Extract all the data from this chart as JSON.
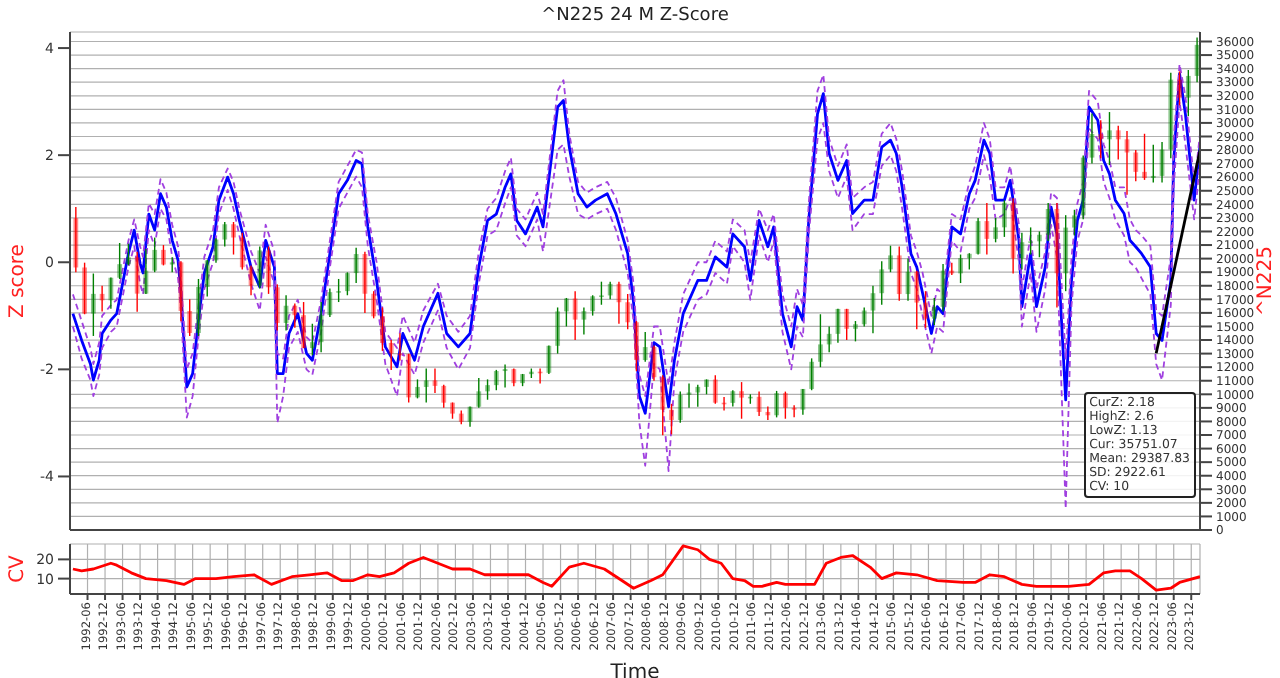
{
  "chart_data": [
    {
      "type": "line",
      "title": "^N225 24 M Z-Score",
      "ylabel": "Z score",
      "y2label": "^N225",
      "grid": true,
      "tick_labels": "y",
      "xlim": [
        "1991-12",
        "2024-03"
      ],
      "xticks": [
        "1992-06",
        "1992-12",
        "1993-06",
        "1993-12",
        "1994-06",
        "1994-12",
        "1995-06",
        "1995-12",
        "1996-06",
        "1996-12",
        "1997-06",
        "1997-12",
        "1998-06",
        "1998-12",
        "1999-06",
        "1999-12",
        "2000-06",
        "2000-12",
        "2001-06",
        "2001-12",
        "2002-06",
        "2002-12",
        "2003-06",
        "2003-12",
        "2004-06",
        "2004-12",
        "2005-06",
        "2005-12",
        "2006-06",
        "2006-12",
        "2007-06",
        "2007-12",
        "2008-06",
        "2008-12",
        "2009-06",
        "2009-12",
        "2010-06",
        "2010-12",
        "2011-06",
        "2011-12",
        "2012-06",
        "2012-12",
        "2013-06",
        "2013-12",
        "2014-06",
        "2014-12",
        "2015-06",
        "2015-12",
        "2016-06",
        "2016-12",
        "2017-06",
        "2017-12",
        "2018-06",
        "2018-12",
        "2019-06",
        "2019-12",
        "2020-06",
        "2020-12",
        "2021-06",
        "2021-12",
        "2022-06",
        "2022-12",
        "2023-06",
        "2023-12"
      ],
      "ylim": [
        -5,
        4.3
      ],
      "yticks": [
        -4,
        -2,
        0,
        2,
        4
      ],
      "y2lim": [
        0,
        36700
      ],
      "y2ticks": [
        0,
        1000,
        2000,
        3000,
        4000,
        5000,
        6000,
        7000,
        8000,
        9000,
        10000,
        11000,
        12000,
        13000,
        14000,
        15000,
        16000,
        17000,
        18000,
        19000,
        20000,
        21000,
        22000,
        23000,
        24000,
        25000,
        26000,
        27000,
        28000,
        29000,
        30000,
        31000,
        32000,
        33000,
        34000,
        35000,
        36000
      ],
      "annotations": [
        "CurZ: 2.18",
        "HighZ: 2.6",
        "LowZ: 1.13",
        "Cur: 35751.07",
        "Mean: 29387.83",
        "SD: 2922.61",
        "CV: 10"
      ],
      "x": [
        "1992-01",
        "1992-04",
        "1992-07",
        "1992-08",
        "1992-10",
        "1992-11",
        "1993-02",
        "1993-04",
        "1993-08",
        "1993-10",
        "1993-12",
        "1994-01",
        "1994-03",
        "1994-05",
        "1994-07",
        "1994-09",
        "1994-11",
        "1995-01",
        "1995-02",
        "1995-04",
        "1995-06",
        "1995-08",
        "1995-10",
        "1996-01",
        "1996-03",
        "1996-06",
        "1996-08",
        "1996-10",
        "1997-02",
        "1997-05",
        "1997-07",
        "1997-10",
        "1997-11",
        "1998-01",
        "1998-03",
        "1998-06",
        "1998-09",
        "1998-11",
        "1999-02",
        "1999-05",
        "1999-08",
        "1999-11",
        "2000-02",
        "2000-04",
        "2000-06",
        "2000-09",
        "2000-12",
        "2001-04",
        "2001-06",
        "2001-10",
        "2002-01",
        "2002-06",
        "2002-09",
        "2003-01",
        "2003-05",
        "2003-08",
        "2003-11",
        "2004-02",
        "2004-05",
        "2004-07",
        "2004-09",
        "2004-12",
        "2005-04",
        "2005-06",
        "2005-11",
        "2006-01",
        "2006-03",
        "2006-06",
        "2006-09",
        "2006-12",
        "2007-04",
        "2007-07",
        "2007-11",
        "2008-01",
        "2008-03",
        "2008-05",
        "2008-08",
        "2008-10",
        "2009-01",
        "2009-03",
        "2009-06",
        "2009-11",
        "2010-02",
        "2010-05",
        "2010-09",
        "2010-11",
        "2011-03",
        "2011-05",
        "2011-08",
        "2011-11",
        "2012-01",
        "2012-04",
        "2012-07",
        "2012-09",
        "2012-11",
        "2013-01",
        "2013-04",
        "2013-06",
        "2013-08",
        "2013-11",
        "2014-02",
        "2014-04",
        "2014-08",
        "2014-11",
        "2015-02",
        "2015-05",
        "2015-07",
        "2015-09",
        "2015-12",
        "2016-02",
        "2016-04",
        "2016-07",
        "2016-09",
        "2016-11",
        "2017-02",
        "2017-05",
        "2017-08",
        "2017-10",
        "2018-01",
        "2018-03",
        "2018-05",
        "2018-08",
        "2018-10",
        "2019-01",
        "2019-02",
        "2019-05",
        "2019-07",
        "2019-10",
        "2019-12",
        "2020-02",
        "2020-05",
        "2020-07",
        "2020-09",
        "2020-11",
        "2021-01",
        "2021-04",
        "2021-06",
        "2021-08",
        "2021-10",
        "2022-01",
        "2022-03",
        "2022-05",
        "2022-07",
        "2022-10",
        "2022-12",
        "2023-02",
        "2023-05",
        "2023-06",
        "2023-08",
        "2023-10",
        "2024-01",
        "2024-02",
        "2024-03"
      ],
      "series": [
        {
          "color": "#0000ff",
          "values": [
            -0.96,
            -1.46,
            -1.9,
            -2.2,
            -1.83,
            -1.33,
            -1.08,
            -0.96,
            0.16,
            0.6,
            -0.02,
            -0.2,
            0.9,
            0.6,
            1.28,
            1.03,
            0.41,
            0.04,
            -0.58,
            -2.33,
            -2.08,
            -1.08,
            -0.2,
            0.29,
            1.16,
            1.59,
            1.28,
            0.78,
            -0.09,
            -0.46,
            0.41,
            -0.09,
            -2.08,
            -2.08,
            -1.33,
            -0.96,
            -1.7,
            -1.83,
            -0.96,
            0.16,
            1.28,
            1.53,
            1.9,
            1.84,
            0.66,
            -0.34,
            -1.58,
            -1.95,
            -1.33,
            -1.83,
            -1.2,
            -0.58,
            -1.33,
            -1.58,
            -1.33,
            -0.09,
            0.78,
            0.9,
            1.4,
            1.65,
            0.78,
            0.53,
            1.03,
            0.66,
            2.9,
            3.02,
            2.15,
            1.28,
            1.03,
            1.16,
            1.28,
            0.9,
            0.16,
            -0.75,
            -2.5,
            -2.82,
            -1.5,
            -1.58,
            -2.7,
            -1.83,
            -0.96,
            -0.34,
            -0.34,
            0.1,
            -0.09,
            0.53,
            0.29,
            -0.34,
            0.78,
            0.29,
            0.66,
            -0.96,
            -1.58,
            -0.83,
            -1.08,
            0.78,
            2.77,
            3.15,
            2.03,
            1.53,
            1.9,
            0.91,
            1.16,
            1.16,
            2.15,
            2.28,
            2.03,
            1.4,
            0.16,
            -0.09,
            -0.58,
            -1.33,
            -0.83,
            -0.96,
            0.66,
            0.53,
            1.28,
            1.53,
            2.28,
            2.03,
            1.16,
            1.16,
            1.53,
            0.41,
            -0.83,
            0.16,
            -0.83,
            -0.09,
            1.03,
            0.53,
            -2.57,
            -0.34,
            0.78,
            1.16,
            2.9,
            2.65,
            1.9,
            1.65,
            1.16,
            0.91,
            0.41,
            0.29,
            0.16,
            -0.09,
            -1.33,
            -1.46,
            -0.34,
            1.9,
            3.52,
            2.77,
            1.16,
            1.65,
            2.18
          ]
        },
        {
          "color": "#a040e0",
          "line_style": "dashed",
          "values": [
            -0.6,
            -1.1,
            -1.6,
            -1.9,
            -1.5,
            -1.0,
            -0.8,
            -0.7,
            0.4,
            0.8,
            0.3,
            0.1,
            1.1,
            0.9,
            1.55,
            1.3,
            0.7,
            0.3,
            -0.3,
            -2.0,
            -1.7,
            -0.8,
            0.1,
            0.6,
            1.4,
            1.75,
            1.5,
            1.0,
            0.2,
            -0.2,
            0.7,
            0.2,
            -1.7,
            -1.8,
            -1.0,
            -0.7,
            -1.4,
            -1.5,
            -0.7,
            0.4,
            1.5,
            1.8,
            2.1,
            2.05,
            0.9,
            0.0,
            -1.3,
            -1.6,
            -1.0,
            -1.5,
            -0.9,
            -0.4,
            -1.0,
            -1.3,
            -1.0,
            0.2,
            1.0,
            1.2,
            1.7,
            1.95,
            1.0,
            0.8,
            1.3,
            0.9,
            3.2,
            3.4,
            2.4,
            1.5,
            1.3,
            1.4,
            1.5,
            1.2,
            0.4,
            -0.4,
            -2.1,
            -2.5,
            -1.2,
            -1.2,
            -2.3,
            -1.5,
            -0.6,
            0.0,
            0.0,
            0.4,
            0.2,
            0.8,
            0.6,
            0.0,
            1.0,
            0.6,
            0.9,
            -0.6,
            -1.2,
            -0.5,
            -0.8,
            1.1,
            3.2,
            3.5,
            2.3,
            1.8,
            2.2,
            1.2,
            1.4,
            1.5,
            2.4,
            2.6,
            2.3,
            1.7,
            0.5,
            0.2,
            -0.2,
            -1.0,
            -0.5,
            -0.6,
            0.9,
            0.8,
            1.5,
            1.8,
            2.6,
            2.3,
            1.4,
            1.4,
            1.8,
            0.7,
            -0.5,
            0.5,
            -0.5,
            0.2,
            1.3,
            1.2,
            -1.8,
            0.1,
            1.1,
            1.5,
            3.2,
            3.0,
            2.2,
            1.9,
            1.4,
            1.4,
            0.8,
            0.6,
            0.5,
            0.3,
            -0.9,
            -1.0,
            0.1,
            2.3,
            3.7,
            3.1,
            1.5,
            1.9,
            2.4
          ]
        },
        {
          "color": "#a040e0",
          "line_style": "dashed",
          "values": [
            -1.2,
            -1.8,
            -2.2,
            -2.5,
            -2.1,
            -1.6,
            -1.3,
            -1.2,
            -0.1,
            0.3,
            -0.4,
            -0.6,
            0.6,
            0.3,
            1.0,
            0.8,
            0.1,
            -0.3,
            -0.9,
            -2.9,
            -2.5,
            -1.4,
            -0.5,
            0.0,
            0.9,
            1.35,
            1.0,
            0.5,
            -0.4,
            -0.9,
            0.1,
            -0.4,
            -3.0,
            -2.5,
            -1.6,
            -1.3,
            -2.0,
            -2.1,
            -1.3,
            -0.1,
            1.0,
            1.3,
            1.6,
            1.4,
            0.3,
            -0.7,
            -1.9,
            -2.5,
            -1.7,
            -2.1,
            -1.5,
            -0.9,
            -1.6,
            -2.0,
            -1.6,
            -0.4,
            0.5,
            0.6,
            1.1,
            1.4,
            0.5,
            0.3,
            0.8,
            0.2,
            2.1,
            2.2,
            1.6,
            0.9,
            0.8,
            0.9,
            1.0,
            0.6,
            -0.2,
            -1.1,
            -3.0,
            -3.8,
            -1.9,
            -2.0,
            -3.9,
            -2.2,
            -1.3,
            -0.7,
            -0.6,
            -0.2,
            -0.4,
            0.3,
            0.0,
            -0.7,
            0.5,
            0.0,
            0.4,
            -1.3,
            -2.0,
            -1.2,
            -1.4,
            0.5,
            2.3,
            2.6,
            1.7,
            1.2,
            1.6,
            0.6,
            0.9,
            0.9,
            1.8,
            2.0,
            1.7,
            1.0,
            -0.2,
            -0.5,
            -1.0,
            -1.7,
            -1.2,
            -1.3,
            0.4,
            0.2,
            1.0,
            1.2,
            2.0,
            1.6,
            0.8,
            0.9,
            1.2,
            0.0,
            -1.2,
            -0.2,
            -1.3,
            -0.5,
            0.7,
            0.1,
            -4.6,
            -0.8,
            0.4,
            0.8,
            2.5,
            2.3,
            1.5,
            1.2,
            0.8,
            0.5,
            0.0,
            -0.1,
            -0.3,
            -0.6,
            -1.9,
            -2.2,
            -0.8,
            1.4,
            3.0,
            2.2,
            0.8,
            1.3,
            1.9
          ]
        },
        {
          "color": "#000000",
          "x": [
            "2022-12",
            "2024-03"
          ],
          "values": [
            -1.7,
            2.09
          ]
        },
        {
          "type": "candlestick",
          "axis": "y2",
          "x": [
            "1992-02",
            "1992-05",
            "1992-08",
            "1992-11",
            "1993-02",
            "1993-05",
            "1993-08",
            "1993-11",
            "1994-02",
            "1994-05",
            "1994-08",
            "1994-11",
            "1995-02",
            "1995-05",
            "1995-08",
            "1995-11",
            "1996-02",
            "1996-05",
            "1996-08",
            "1996-11",
            "1997-02",
            "1997-05",
            "1997-08",
            "1997-11",
            "1998-02",
            "1998-05",
            "1998-08",
            "1998-11",
            "1999-02",
            "1999-05",
            "1999-08",
            "1999-11",
            "2000-02",
            "2000-05",
            "2000-08",
            "2000-11",
            "2001-02",
            "2001-05",
            "2001-08",
            "2001-11",
            "2002-02",
            "2002-05",
            "2002-08",
            "2002-11",
            "2003-02",
            "2003-05",
            "2003-08",
            "2003-11",
            "2004-02",
            "2004-05",
            "2004-08",
            "2004-11",
            "2005-02",
            "2005-05",
            "2005-08",
            "2005-11",
            "2006-02",
            "2006-05",
            "2006-08",
            "2006-11",
            "2007-02",
            "2007-05",
            "2007-08",
            "2007-11",
            "2008-02",
            "2008-05",
            "2008-08",
            "2008-11",
            "2009-02",
            "2009-05",
            "2009-08",
            "2009-11",
            "2010-02",
            "2010-05",
            "2010-08",
            "2010-11",
            "2011-02",
            "2011-05",
            "2011-08",
            "2011-11",
            "2012-02",
            "2012-05",
            "2012-08",
            "2012-11",
            "2013-02",
            "2013-05",
            "2013-08",
            "2013-11",
            "2014-02",
            "2014-05",
            "2014-08",
            "2014-11",
            "2015-02",
            "2015-05",
            "2015-08",
            "2015-11",
            "2016-02",
            "2016-05",
            "2016-08",
            "2016-11",
            "2017-02",
            "2017-05",
            "2017-08",
            "2017-11",
            "2018-02",
            "2018-05",
            "2018-08",
            "2018-11",
            "2019-02",
            "2019-05",
            "2019-08",
            "2019-11",
            "2020-02",
            "2020-05",
            "2020-08",
            "2020-11",
            "2021-02",
            "2021-05",
            "2021-08",
            "2021-11",
            "2022-02",
            "2022-05",
            "2022-08",
            "2022-11",
            "2023-02",
            "2023-05",
            "2023-08",
            "2023-11",
            "2024-02"
          ],
          "ohlc": [
            [
              22983,
              23800,
              19000,
              19346
            ],
            [
              19346,
              19700,
              15900,
              15950
            ],
            [
              15950,
              18900,
              14300,
              17400
            ],
            [
              17400,
              18000,
              16100,
              16925
            ],
            [
              16925,
              18600,
              16300,
              18590
            ],
            [
              18590,
              21150,
              18500,
              19590
            ],
            [
              19590,
              21100,
              19500,
              20100
            ],
            [
              20100,
              20500,
              16080,
              17417
            ],
            [
              17417,
              20700,
              17400,
              19111
            ],
            [
              19111,
              21550,
              19000,
              20644
            ],
            [
              20644,
              21000,
              19500,
              19564
            ],
            [
              19564,
              20100,
              19000,
              19723
            ],
            [
              19723,
              19800,
              15380,
              16140
            ],
            [
              16140,
              17000,
              14300,
              14517
            ],
            [
              14517,
              18500,
              14300,
              17913
            ],
            [
              17913,
              19900,
              17200,
              19868
            ],
            [
              19868,
              21500,
              19700,
              21407
            ],
            [
              21407,
              22700,
              20900,
              22531
            ],
            [
              22531,
              22700,
              20300,
              21556
            ],
            [
              21556,
              21900,
              19200,
              19361
            ],
            [
              19361,
              19500,
              17300,
              18003
            ],
            [
              18003,
              20900,
              17800,
              20605
            ],
            [
              20605,
              20900,
              17400,
              17888
            ],
            [
              17888,
              18100,
              14700,
              15259
            ],
            [
              15259,
              17300,
              14700,
              16527
            ],
            [
              16527,
              16700,
              14900,
              15830
            ],
            [
              15830,
              16800,
              13400,
              13406
            ],
            [
              13406,
              15200,
              12880,
              13842
            ],
            [
              13842,
              16800,
              13100,
              15837
            ],
            [
              15837,
              17800,
              15700,
              17530
            ],
            [
              17530,
              18500,
              16800,
              17605
            ],
            [
              17605,
              18990,
              17300,
              18934
            ],
            [
              18934,
              20800,
              18200,
              20337
            ],
            [
              20337,
              20500,
              16000,
              17411
            ],
            [
              17411,
              17600,
              15600,
              15747
            ],
            [
              15747,
              16400,
              13200,
              13785
            ],
            [
              13785,
              14000,
              11800,
              12999
            ],
            [
              12999,
              14500,
              12500,
              12969
            ],
            [
              12969,
              12990,
              9400,
              9774
            ],
            [
              9774,
              11100,
              9700,
              10542
            ],
            [
              10542,
              11900,
              9400,
              11024
            ],
            [
              11024,
              11900,
              10100,
              10621
            ],
            [
              10621,
              10700,
              9000,
              9383
            ],
            [
              9383,
              9400,
              8200,
              8578
            ],
            [
              8578,
              8800,
              7800,
              7972
            ],
            [
              7972,
              9100,
              7600,
              9083
            ],
            [
              9083,
              11200,
              9000,
              10219
            ],
            [
              10219,
              11100,
              9600,
              10676
            ],
            [
              10676,
              11800,
              10300,
              11715
            ],
            [
              11715,
              12200,
              10500,
              11858
            ],
            [
              11858,
              11900,
              10600,
              10823
            ],
            [
              10823,
              11500,
              10600,
              11488
            ],
            [
              11488,
              11900,
              11200,
              11668
            ],
            [
              11668,
              11900,
              10800,
              11584
            ],
            [
              11584,
              13600,
              11500,
              13574
            ],
            [
              13574,
              16400,
              13000,
              16111
            ],
            [
              16111,
              17100,
              15000,
              17059
            ],
            [
              17059,
              17600,
              14000,
              15505
            ],
            [
              15505,
              16400,
              14400,
              16127
            ],
            [
              16127,
              17300,
              15800,
              17225
            ],
            [
              17225,
              18300,
              16600,
              17287
            ],
            [
              17287,
              18300,
              17000,
              18138
            ],
            [
              18138,
              18300,
              15200,
              16785
            ],
            [
              16785,
              17400,
              14800,
              15307
            ],
            [
              15307,
              15400,
              11700,
              12525
            ],
            [
              12525,
              14600,
              12400,
              13481
            ],
            [
              13481,
              13600,
              11000,
              11259
            ],
            [
              11259,
              11400,
              6990,
              8859
            ],
            [
              8859,
              9300,
              7050,
              8109
            ],
            [
              8109,
              10200,
              7900,
              9958
            ],
            [
              9958,
              10800,
              9000,
              10133
            ],
            [
              10133,
              10700,
              9080,
              10546
            ],
            [
              10546,
              11100,
              10000,
              11089
            ],
            [
              11089,
              11400,
              9300,
              9382
            ],
            [
              9382,
              9800,
              8800,
              9369
            ],
            [
              9369,
              10300,
              9100,
              10228
            ],
            [
              10228,
              10900,
              8200,
              9755
            ],
            [
              9755,
              10000,
              9300,
              9816
            ],
            [
              9816,
              10200,
              8400,
              8700
            ],
            [
              8700,
              9100,
              8100,
              8455
            ],
            [
              8455,
              10250,
              8300,
              10083
            ],
            [
              10083,
              10200,
              8200,
              9006
            ],
            [
              9006,
              9200,
              8300,
              8870
            ],
            [
              8870,
              10400,
              8500,
              10395
            ],
            [
              10395,
              12650,
              10300,
              12397
            ],
            [
              12397,
              15900,
              12000,
              13677
            ],
            [
              13677,
              15000,
              13100,
              14455
            ],
            [
              14455,
              16300,
              13800,
              16291
            ],
            [
              16291,
              16300,
              14000,
              14827
            ],
            [
              14827,
              15400,
              13900,
              15162
            ],
            [
              15162,
              16400,
              15000,
              16173
            ],
            [
              16173,
              18000,
              14500,
              17451
            ],
            [
              17451,
              19800,
              16600,
              19207
            ],
            [
              19207,
              20950,
              19000,
              20236
            ],
            [
              20236,
              20900,
              16900,
              17388
            ],
            [
              17388,
              20000,
              16900,
              19034
            ],
            [
              19034,
              19100,
              14800,
              16759
            ],
            [
              16759,
              17600,
              14900,
              15576
            ],
            [
              15576,
              17100,
              15100,
              16450
            ],
            [
              16450,
              19600,
              16100,
              19114
            ],
            [
              19114,
              19700,
              18800,
              18909
            ],
            [
              18909,
              20300,
              18200,
              20033
            ],
            [
              20033,
              20400,
              19200,
              20356
            ],
            [
              20356,
              23000,
              20300,
              22765
            ],
            [
              22765,
              24100,
              20300,
              21454
            ],
            [
              21454,
              23000,
              21200,
              22305
            ],
            [
              22305,
              24300,
              21600,
              24120
            ],
            [
              24120,
              24450,
              18900,
              20015
            ],
            [
              20015,
              21900,
              19200,
              21206
            ],
            [
              21206,
              22300,
              20300,
              21276
            ],
            [
              21276,
              22000,
              20100,
              21756
            ],
            [
              21756,
              24100,
              21300,
              23657
            ],
            [
              23657,
              24100,
              16400,
              18917
            ],
            [
              18917,
              23200,
              17600,
              22288
            ],
            [
              22288,
              23600,
              21700,
              23185
            ],
            [
              23185,
              27600,
              22900,
              27444
            ],
            [
              27444,
              30700,
              27000,
              29179
            ],
            [
              29179,
              30200,
              27400,
              28792
            ],
            [
              28792,
              30800,
              26900,
              29453
            ],
            [
              29453,
              29800,
              27300,
              28792
            ],
            [
              28792,
              29400,
              24700,
              27821
            ],
            [
              27821,
              28000,
              25700,
              26393
            ],
            [
              26393,
              29200,
              25800,
              25937
            ],
            [
              25937,
              28400,
              25600,
              26095
            ],
            [
              26095,
              28600,
              25600,
              28041
            ],
            [
              28041,
              33700,
              27400,
              33189
            ],
            [
              33189,
              33800,
              31300,
              31858
            ],
            [
              31858,
              33900,
              30500,
              33464
            ],
            [
              33464,
              36300,
              33000,
              35751
            ]
          ],
          "colors": [
            "#ff0000",
            "#ff0000",
            "#008000",
            "#ff0000",
            "#008000",
            "#008000",
            "#008000",
            "#ff0000",
            "#008000",
            "#008000",
            "#ff0000",
            "#008000",
            "#ff0000",
            "#ff0000",
            "#008000",
            "#008000",
            "#008000",
            "#008000",
            "#ff0000",
            "#ff0000",
            "#ff0000",
            "#008000",
            "#ff0000",
            "#ff0000",
            "#008000",
            "#ff0000",
            "#ff0000",
            "#008000",
            "#008000",
            "#008000",
            "#008000",
            "#008000",
            "#008000",
            "#ff0000",
            "#ff0000",
            "#ff0000",
            "#ff0000",
            "#ff0000",
            "#ff0000",
            "#008000",
            "#008000",
            "#ff0000",
            "#ff0000",
            "#ff0000",
            "#ff0000",
            "#008000",
            "#008000",
            "#008000",
            "#008000",
            "#008000",
            "#ff0000",
            "#008000",
            "#008000",
            "#ff0000",
            "#008000",
            "#008000",
            "#008000",
            "#ff0000",
            "#008000",
            "#008000",
            "#008000",
            "#008000",
            "#ff0000",
            "#ff0000",
            "#ff0000",
            "#008000",
            "#ff0000",
            "#ff0000",
            "#ff0000",
            "#008000",
            "#008000",
            "#008000",
            "#008000",
            "#ff0000",
            "#ff0000",
            "#008000",
            "#ff0000",
            "#008000",
            "#ff0000",
            "#ff0000",
            "#008000",
            "#ff0000",
            "#ff0000",
            "#008000",
            "#008000",
            "#008000",
            "#008000",
            "#008000",
            "#ff0000",
            "#008000",
            "#008000",
            "#008000",
            "#008000",
            "#008000",
            "#ff0000",
            "#008000",
            "#ff0000",
            "#ff0000",
            "#008000",
            "#008000",
            "#ff0000",
            "#008000",
            "#008000",
            "#008000",
            "#ff0000",
            "#008000",
            "#008000",
            "#ff0000",
            "#008000",
            "#008000",
            "#008000",
            "#008000",
            "#ff0000",
            "#008000",
            "#008000",
            "#008000",
            "#008000",
            "#ff0000",
            "#008000",
            "#ff0000",
            "#ff0000",
            "#ff0000",
            "#ff0000",
            "#008000",
            "#008000",
            "#008000",
            "#ff0000",
            "#008000",
            "#008000"
          ]
        }
      ]
    },
    {
      "type": "line",
      "ylabel": "CV",
      "xlabel": "Time",
      "grid": true,
      "xlim": [
        "1991-12",
        "2024-03"
      ],
      "xticks": [
        "1992-06",
        "1992-12",
        "1993-06",
        "1993-12",
        "1994-06",
        "1994-12",
        "1995-06",
        "1995-12",
        "1996-06",
        "1996-12",
        "1997-06",
        "1997-12",
        "1998-06",
        "1998-12",
        "1999-06",
        "1999-12",
        "2000-06",
        "2000-12",
        "2001-06",
        "2001-12",
        "2002-06",
        "2002-12",
        "2003-06",
        "2003-12",
        "2004-06",
        "2004-12",
        "2005-06",
        "2005-12",
        "2006-06",
        "2006-12",
        "2007-06",
        "2007-12",
        "2008-06",
        "2008-12",
        "2009-06",
        "2009-12",
        "2010-06",
        "2010-12",
        "2011-06",
        "2011-12",
        "2012-06",
        "2012-12",
        "2013-06",
        "2013-12",
        "2014-06",
        "2014-12",
        "2015-06",
        "2015-12",
        "2016-06",
        "2016-12",
        "2017-06",
        "2017-12",
        "2018-06",
        "2018-12",
        "2019-06",
        "2019-12",
        "2020-06",
        "2020-12",
        "2021-06",
        "2021-12",
        "2022-06",
        "2022-12",
        "2023-06",
        "2023-12"
      ],
      "ylim": [
        2,
        28
      ],
      "yticks": [
        10,
        20
      ],
      "x": [
        "1992-01",
        "1992-04",
        "1992-08",
        "1993-02",
        "1993-04",
        "1993-09",
        "1994-02",
        "1994-09",
        "1995-03",
        "1995-07",
        "1996-02",
        "1996-08",
        "1997-03",
        "1997-09",
        "1998-04",
        "1998-10",
        "1999-04",
        "1999-09",
        "2000-01",
        "2000-06",
        "2000-10",
        "2001-03",
        "2001-08",
        "2002-01",
        "2002-06",
        "2002-11",
        "2003-05",
        "2003-10",
        "2004-07",
        "2005-01",
        "2005-06",
        "2005-09",
        "2006-03",
        "2006-08",
        "2007-03",
        "2007-09",
        "2008-01",
        "2008-07",
        "2008-11",
        "2009-06",
        "2009-11",
        "2010-03",
        "2010-07",
        "2010-11",
        "2011-03",
        "2011-06",
        "2011-09",
        "2012-02",
        "2012-05",
        "2013-03",
        "2013-07",
        "2013-12",
        "2014-04",
        "2014-10",
        "2015-02",
        "2015-07",
        "2016-02",
        "2016-09",
        "2017-06",
        "2017-10",
        "2018-03",
        "2018-08",
        "2019-02",
        "2019-07",
        "2020-02",
        "2020-06",
        "2021-01",
        "2021-06",
        "2021-10",
        "2022-03",
        "2022-07",
        "2022-12",
        "2023-05",
        "2023-08",
        "2024-03"
      ],
      "series": [
        {
          "color": "#ff0000",
          "values": [
            15,
            14,
            15,
            18,
            17,
            13,
            10,
            9,
            7,
            10,
            10,
            11,
            12,
            7,
            11,
            12,
            13,
            9,
            9,
            12,
            11,
            13,
            18,
            21,
            18,
            15,
            15,
            12,
            12,
            12,
            8,
            6,
            16,
            18,
            15,
            9,
            5,
            9,
            12,
            27,
            25,
            20,
            18,
            10,
            9,
            6,
            6,
            8,
            7,
            7,
            18,
            21,
            22,
            16,
            10,
            13,
            12,
            9,
            8,
            8,
            12,
            11,
            7,
            6,
            6,
            6,
            7,
            13,
            14,
            14,
            10,
            4,
            5,
            8,
            11
          ]
        }
      ]
    }
  ]
}
